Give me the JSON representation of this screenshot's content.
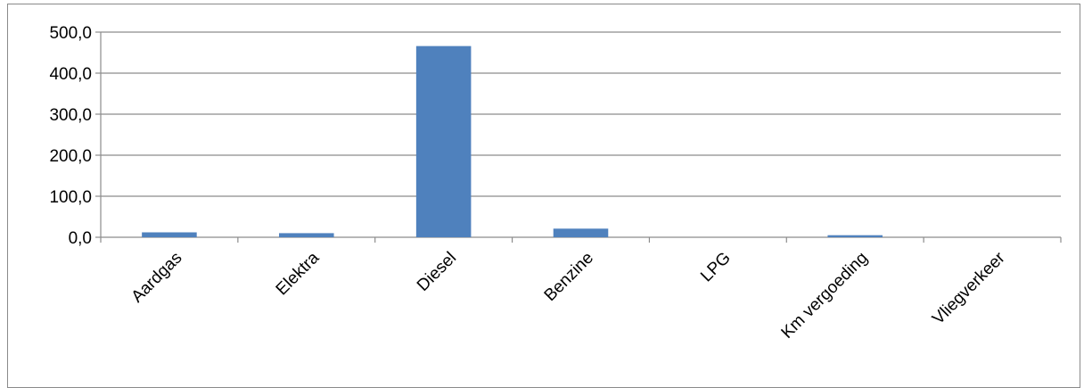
{
  "chart_data": {
    "type": "bar",
    "title": "",
    "xlabel": "",
    "ylabel": "",
    "categories": [
      "Aardgas",
      "Elektra",
      "Diesel",
      "Benzine",
      "LPG",
      "Km vergoeding",
      "Vliegverkeer"
    ],
    "values": [
      12,
      10,
      466,
      21,
      0,
      5,
      0
    ],
    "ylim": [
      0,
      500
    ],
    "yticks": [
      0,
      100,
      200,
      300,
      400,
      500
    ],
    "ytick_labels": [
      "0,0",
      "100,0",
      "200,0",
      "300,0",
      "400,0",
      "500,0"
    ],
    "grid": true,
    "legend": "none",
    "bar_color": "#4F81BD",
    "grid_color": "#8C8C8C",
    "axis_color": "#8C8C8C"
  }
}
